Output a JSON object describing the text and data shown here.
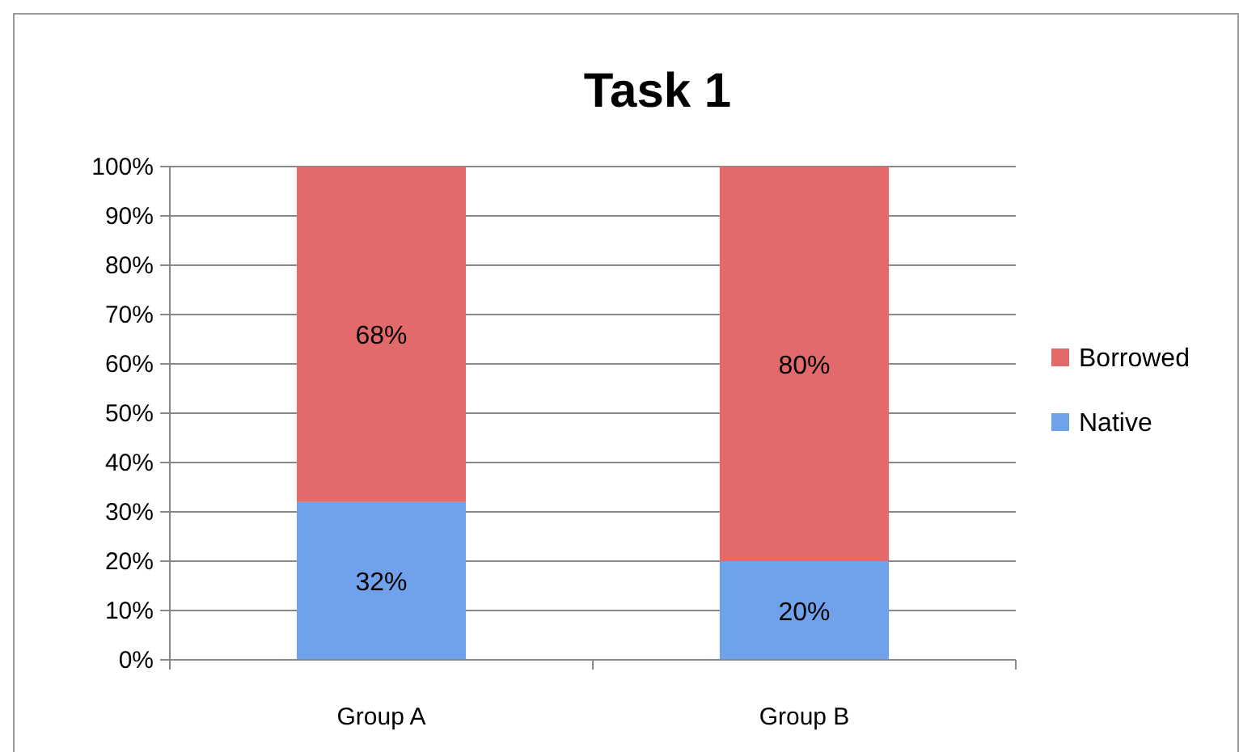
{
  "chart_data": {
    "type": "bar",
    "title": "Task 1",
    "categories": [
      "Group A",
      "Group B"
    ],
    "stacked": true,
    "series": [
      {
        "name": "Native",
        "color": "#6fa2ea",
        "values": [
          32,
          20
        ],
        "value_labels": [
          "32%",
          "20%"
        ]
      },
      {
        "name": "Borrowed",
        "color": "#e26a6a",
        "values": [
          68,
          80
        ],
        "value_labels": [
          "68%",
          "80%"
        ]
      }
    ],
    "ylim": [
      0,
      100
    ],
    "yticks": [
      {
        "value": 0,
        "label": "0%"
      },
      {
        "value": 10,
        "label": "10%"
      },
      {
        "value": 20,
        "label": "20%"
      },
      {
        "value": 30,
        "label": "30%"
      },
      {
        "value": 40,
        "label": "40%"
      },
      {
        "value": 50,
        "label": "50%"
      },
      {
        "value": 60,
        "label": "60%"
      },
      {
        "value": 70,
        "label": "70%"
      },
      {
        "value": 80,
        "label": "80%"
      },
      {
        "value": 90,
        "label": "90%"
      },
      {
        "value": 100,
        "label": "100%"
      }
    ],
    "grid": "y",
    "legend": "right"
  }
}
